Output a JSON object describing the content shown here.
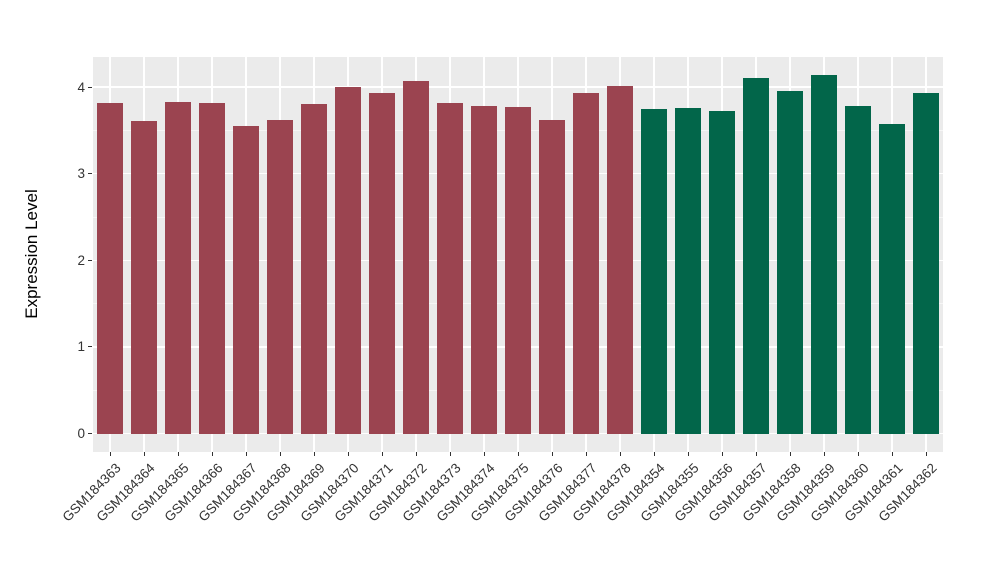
{
  "chart_data": {
    "type": "bar",
    "title": "",
    "xlabel": "",
    "ylabel": "Expression Level",
    "legend": "none",
    "grid": true,
    "panel_bg": "#EBEBEB",
    "grid_color": "#FFFFFF",
    "x_tick_rotation": 45,
    "yticks": [
      0,
      1,
      2,
      3,
      4
    ],
    "ylim": [
      -0.207,
      4.347
    ],
    "bar_rel_width": 0.75,
    "categories": [
      "GSM184363",
      "GSM184364",
      "GSM184365",
      "GSM184366",
      "GSM184367",
      "GSM184368",
      "GSM184369",
      "GSM184370",
      "GSM184371",
      "GSM184372",
      "GSM184373",
      "GSM184374",
      "GSM184375",
      "GSM184376",
      "GSM184377",
      "GSM184378",
      "GSM184354",
      "GSM184355",
      "GSM184356",
      "GSM184357",
      "GSM184358",
      "GSM184359",
      "GSM184360",
      "GSM184361",
      "GSM184362"
    ],
    "values": [
      3.82,
      3.61,
      3.83,
      3.82,
      3.55,
      3.62,
      3.81,
      4.0,
      3.93,
      4.07,
      3.82,
      3.78,
      3.77,
      3.62,
      3.93,
      4.01,
      3.75,
      3.76,
      3.72,
      4.1,
      3.96,
      4.14,
      3.78,
      3.57,
      3.93
    ],
    "groups": [
      "groupA",
      "groupA",
      "groupA",
      "groupA",
      "groupA",
      "groupA",
      "groupA",
      "groupA",
      "groupA",
      "groupA",
      "groupA",
      "groupA",
      "groupA",
      "groupA",
      "groupA",
      "groupA",
      "groupB",
      "groupB",
      "groupB",
      "groupB",
      "groupB",
      "groupB",
      "groupB",
      "groupB",
      "groupB"
    ],
    "group_colors": {
      "groupA": "#9B4450",
      "groupB": "#02664A"
    }
  }
}
